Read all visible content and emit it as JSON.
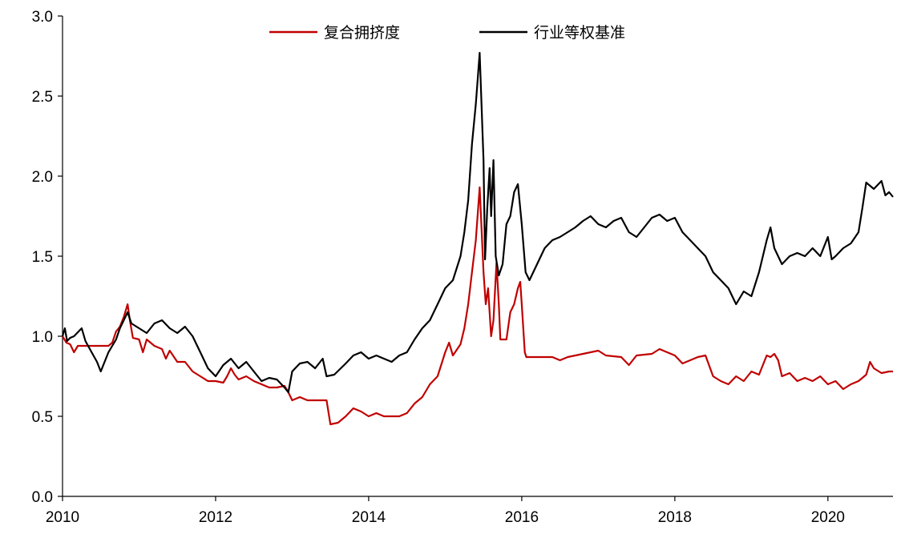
{
  "chart_data": {
    "type": "line",
    "title": "",
    "xlabel": "",
    "ylabel": "",
    "xlim": [
      2010,
      2020.85
    ],
    "ylim": [
      0,
      3.0
    ],
    "x_ticks": [
      2010,
      2012,
      2014,
      2016,
      2018,
      2020
    ],
    "x_tick_labels": [
      "2010",
      "2012",
      "2014",
      "2016",
      "2018",
      "2020"
    ],
    "y_ticks": [
      0,
      0.5,
      1.0,
      1.5,
      2.0,
      2.5,
      3.0
    ],
    "y_tick_labels": [
      "0.0",
      "0.5",
      "1.0",
      "1.5",
      "2.0",
      "2.5",
      "3.0"
    ],
    "grid": false,
    "legend_position": "top-center",
    "series": [
      {
        "name": "复合拥挤度",
        "color": "#c00000",
        "points": [
          [
            2010.0,
            1.0
          ],
          [
            2010.05,
            0.96
          ],
          [
            2010.1,
            0.95
          ],
          [
            2010.15,
            0.9
          ],
          [
            2010.2,
            0.94
          ],
          [
            2010.3,
            0.94
          ],
          [
            2010.5,
            0.94
          ],
          [
            2010.6,
            0.94
          ],
          [
            2010.65,
            0.96
          ],
          [
            2010.7,
            1.03
          ],
          [
            2010.75,
            1.06
          ],
          [
            2010.8,
            1.12
          ],
          [
            2010.85,
            1.2
          ],
          [
            2010.88,
            1.1
          ],
          [
            2010.92,
            0.99
          ],
          [
            2011.0,
            0.98
          ],
          [
            2011.05,
            0.9
          ],
          [
            2011.1,
            0.98
          ],
          [
            2011.2,
            0.94
          ],
          [
            2011.3,
            0.92
          ],
          [
            2011.35,
            0.86
          ],
          [
            2011.4,
            0.91
          ],
          [
            2011.5,
            0.84
          ],
          [
            2011.6,
            0.84
          ],
          [
            2011.7,
            0.78
          ],
          [
            2011.8,
            0.75
          ],
          [
            2011.9,
            0.72
          ],
          [
            2012.0,
            0.72
          ],
          [
            2012.1,
            0.71
          ],
          [
            2012.15,
            0.75
          ],
          [
            2012.2,
            0.8
          ],
          [
            2012.25,
            0.76
          ],
          [
            2012.3,
            0.73
          ],
          [
            2012.4,
            0.75
          ],
          [
            2012.5,
            0.72
          ],
          [
            2012.6,
            0.7
          ],
          [
            2012.7,
            0.68
          ],
          [
            2012.8,
            0.68
          ],
          [
            2012.9,
            0.69
          ],
          [
            2012.95,
            0.65
          ],
          [
            2013.0,
            0.6
          ],
          [
            2013.1,
            0.62
          ],
          [
            2013.2,
            0.6
          ],
          [
            2013.3,
            0.6
          ],
          [
            2013.45,
            0.6
          ],
          [
            2013.5,
            0.45
          ],
          [
            2013.6,
            0.46
          ],
          [
            2013.7,
            0.5
          ],
          [
            2013.8,
            0.55
          ],
          [
            2013.9,
            0.53
          ],
          [
            2014.0,
            0.5
          ],
          [
            2014.1,
            0.52
          ],
          [
            2014.2,
            0.5
          ],
          [
            2014.3,
            0.5
          ],
          [
            2014.4,
            0.5
          ],
          [
            2014.5,
            0.52
          ],
          [
            2014.6,
            0.58
          ],
          [
            2014.7,
            0.62
          ],
          [
            2014.8,
            0.7
          ],
          [
            2014.9,
            0.75
          ],
          [
            2015.0,
            0.9
          ],
          [
            2015.05,
            0.96
          ],
          [
            2015.1,
            0.88
          ],
          [
            2015.2,
            0.95
          ],
          [
            2015.25,
            1.05
          ],
          [
            2015.3,
            1.2
          ],
          [
            2015.35,
            1.4
          ],
          [
            2015.4,
            1.6
          ],
          [
            2015.45,
            1.93
          ],
          [
            2015.5,
            1.4
          ],
          [
            2015.53,
            1.2
          ],
          [
            2015.56,
            1.3
          ],
          [
            2015.6,
            1.0
          ],
          [
            2015.63,
            1.1
          ],
          [
            2015.67,
            1.46
          ],
          [
            2015.7,
            1.2
          ],
          [
            2015.72,
            0.98
          ],
          [
            2015.8,
            0.98
          ],
          [
            2015.85,
            1.15
          ],
          [
            2015.9,
            1.2
          ],
          [
            2015.95,
            1.3
          ],
          [
            2015.98,
            1.34
          ],
          [
            2016.0,
            1.2
          ],
          [
            2016.04,
            0.9
          ],
          [
            2016.06,
            0.87
          ],
          [
            2016.2,
            0.87
          ],
          [
            2016.4,
            0.87
          ],
          [
            2016.5,
            0.85
          ],
          [
            2016.6,
            0.87
          ],
          [
            2016.8,
            0.89
          ],
          [
            2016.9,
            0.9
          ],
          [
            2017.0,
            0.91
          ],
          [
            2017.1,
            0.88
          ],
          [
            2017.3,
            0.87
          ],
          [
            2017.4,
            0.82
          ],
          [
            2017.5,
            0.88
          ],
          [
            2017.7,
            0.89
          ],
          [
            2017.8,
            0.92
          ],
          [
            2017.9,
            0.9
          ],
          [
            2018.0,
            0.88
          ],
          [
            2018.1,
            0.83
          ],
          [
            2018.2,
            0.85
          ],
          [
            2018.3,
            0.87
          ],
          [
            2018.4,
            0.88
          ],
          [
            2018.5,
            0.75
          ],
          [
            2018.6,
            0.72
          ],
          [
            2018.7,
            0.7
          ],
          [
            2018.8,
            0.75
          ],
          [
            2018.9,
            0.72
          ],
          [
            2019.0,
            0.78
          ],
          [
            2019.1,
            0.76
          ],
          [
            2019.2,
            0.88
          ],
          [
            2019.25,
            0.87
          ],
          [
            2019.3,
            0.89
          ],
          [
            2019.35,
            0.85
          ],
          [
            2019.4,
            0.75
          ],
          [
            2019.5,
            0.77
          ],
          [
            2019.6,
            0.72
          ],
          [
            2019.7,
            0.74
          ],
          [
            2019.8,
            0.72
          ],
          [
            2019.9,
            0.75
          ],
          [
            2020.0,
            0.7
          ],
          [
            2020.1,
            0.72
          ],
          [
            2020.2,
            0.67
          ],
          [
            2020.3,
            0.7
          ],
          [
            2020.4,
            0.72
          ],
          [
            2020.5,
            0.76
          ],
          [
            2020.55,
            0.84
          ],
          [
            2020.6,
            0.8
          ],
          [
            2020.7,
            0.77
          ],
          [
            2020.8,
            0.78
          ],
          [
            2020.85,
            0.78
          ]
        ]
      },
      {
        "name": "行业等权基准",
        "color": "#000000",
        "points": [
          [
            2010.0,
            1.0
          ],
          [
            2010.03,
            1.05
          ],
          [
            2010.06,
            0.97
          ],
          [
            2010.1,
            0.99
          ],
          [
            2010.15,
            1.0
          ],
          [
            2010.25,
            1.05
          ],
          [
            2010.3,
            0.97
          ],
          [
            2010.38,
            0.9
          ],
          [
            2010.45,
            0.84
          ],
          [
            2010.5,
            0.78
          ],
          [
            2010.55,
            0.84
          ],
          [
            2010.6,
            0.9
          ],
          [
            2010.7,
            0.98
          ],
          [
            2010.75,
            1.05
          ],
          [
            2010.8,
            1.1
          ],
          [
            2010.85,
            1.15
          ],
          [
            2010.9,
            1.08
          ],
          [
            2011.0,
            1.05
          ],
          [
            2011.1,
            1.02
          ],
          [
            2011.2,
            1.08
          ],
          [
            2011.3,
            1.1
          ],
          [
            2011.4,
            1.05
          ],
          [
            2011.5,
            1.02
          ],
          [
            2011.6,
            1.06
          ],
          [
            2011.7,
            1.0
          ],
          [
            2011.8,
            0.9
          ],
          [
            2011.9,
            0.8
          ],
          [
            2012.0,
            0.75
          ],
          [
            2012.1,
            0.82
          ],
          [
            2012.2,
            0.86
          ],
          [
            2012.3,
            0.8
          ],
          [
            2012.4,
            0.84
          ],
          [
            2012.5,
            0.78
          ],
          [
            2012.6,
            0.72
          ],
          [
            2012.7,
            0.74
          ],
          [
            2012.8,
            0.73
          ],
          [
            2012.9,
            0.68
          ],
          [
            2012.95,
            0.65
          ],
          [
            2013.0,
            0.78
          ],
          [
            2013.1,
            0.83
          ],
          [
            2013.2,
            0.84
          ],
          [
            2013.3,
            0.8
          ],
          [
            2013.4,
            0.86
          ],
          [
            2013.45,
            0.75
          ],
          [
            2013.55,
            0.76
          ],
          [
            2013.7,
            0.83
          ],
          [
            2013.8,
            0.88
          ],
          [
            2013.9,
            0.9
          ],
          [
            2014.0,
            0.86
          ],
          [
            2014.1,
            0.88
          ],
          [
            2014.2,
            0.86
          ],
          [
            2014.3,
            0.84
          ],
          [
            2014.4,
            0.88
          ],
          [
            2014.5,
            0.9
          ],
          [
            2014.6,
            0.98
          ],
          [
            2014.7,
            1.05
          ],
          [
            2014.8,
            1.1
          ],
          [
            2014.9,
            1.2
          ],
          [
            2015.0,
            1.3
          ],
          [
            2015.1,
            1.35
          ],
          [
            2015.2,
            1.5
          ],
          [
            2015.25,
            1.65
          ],
          [
            2015.3,
            1.85
          ],
          [
            2015.35,
            2.2
          ],
          [
            2015.4,
            2.45
          ],
          [
            2015.45,
            2.77
          ],
          [
            2015.5,
            2.1
          ],
          [
            2015.52,
            1.48
          ],
          [
            2015.55,
            1.8
          ],
          [
            2015.58,
            2.05
          ],
          [
            2015.6,
            1.75
          ],
          [
            2015.63,
            2.1
          ],
          [
            2015.66,
            1.5
          ],
          [
            2015.7,
            1.38
          ],
          [
            2015.75,
            1.45
          ],
          [
            2015.8,
            1.7
          ],
          [
            2015.85,
            1.75
          ],
          [
            2015.9,
            1.9
          ],
          [
            2015.95,
            1.95
          ],
          [
            2016.0,
            1.7
          ],
          [
            2016.05,
            1.4
          ],
          [
            2016.1,
            1.35
          ],
          [
            2016.2,
            1.45
          ],
          [
            2016.3,
            1.55
          ],
          [
            2016.4,
            1.6
          ],
          [
            2016.5,
            1.62
          ],
          [
            2016.6,
            1.65
          ],
          [
            2016.7,
            1.68
          ],
          [
            2016.8,
            1.72
          ],
          [
            2016.9,
            1.75
          ],
          [
            2017.0,
            1.7
          ],
          [
            2017.1,
            1.68
          ],
          [
            2017.2,
            1.72
          ],
          [
            2017.3,
            1.74
          ],
          [
            2017.4,
            1.65
          ],
          [
            2017.5,
            1.62
          ],
          [
            2017.6,
            1.68
          ],
          [
            2017.7,
            1.74
          ],
          [
            2017.8,
            1.76
          ],
          [
            2017.9,
            1.72
          ],
          [
            2018.0,
            1.74
          ],
          [
            2018.1,
            1.65
          ],
          [
            2018.2,
            1.6
          ],
          [
            2018.3,
            1.55
          ],
          [
            2018.4,
            1.5
          ],
          [
            2018.5,
            1.4
          ],
          [
            2018.6,
            1.35
          ],
          [
            2018.7,
            1.3
          ],
          [
            2018.8,
            1.2
          ],
          [
            2018.9,
            1.28
          ],
          [
            2019.0,
            1.25
          ],
          [
            2019.1,
            1.4
          ],
          [
            2019.2,
            1.6
          ],
          [
            2019.25,
            1.68
          ],
          [
            2019.3,
            1.55
          ],
          [
            2019.4,
            1.45
          ],
          [
            2019.5,
            1.5
          ],
          [
            2019.6,
            1.52
          ],
          [
            2019.7,
            1.5
          ],
          [
            2019.8,
            1.55
          ],
          [
            2019.9,
            1.5
          ],
          [
            2020.0,
            1.62
          ],
          [
            2020.05,
            1.48
          ],
          [
            2020.1,
            1.5
          ],
          [
            2020.2,
            1.55
          ],
          [
            2020.3,
            1.58
          ],
          [
            2020.4,
            1.65
          ],
          [
            2020.45,
            1.8
          ],
          [
            2020.5,
            1.96
          ],
          [
            2020.6,
            1.92
          ],
          [
            2020.7,
            1.97
          ],
          [
            2020.75,
            1.88
          ],
          [
            2020.8,
            1.9
          ],
          [
            2020.85,
            1.87
          ]
        ]
      }
    ]
  }
}
